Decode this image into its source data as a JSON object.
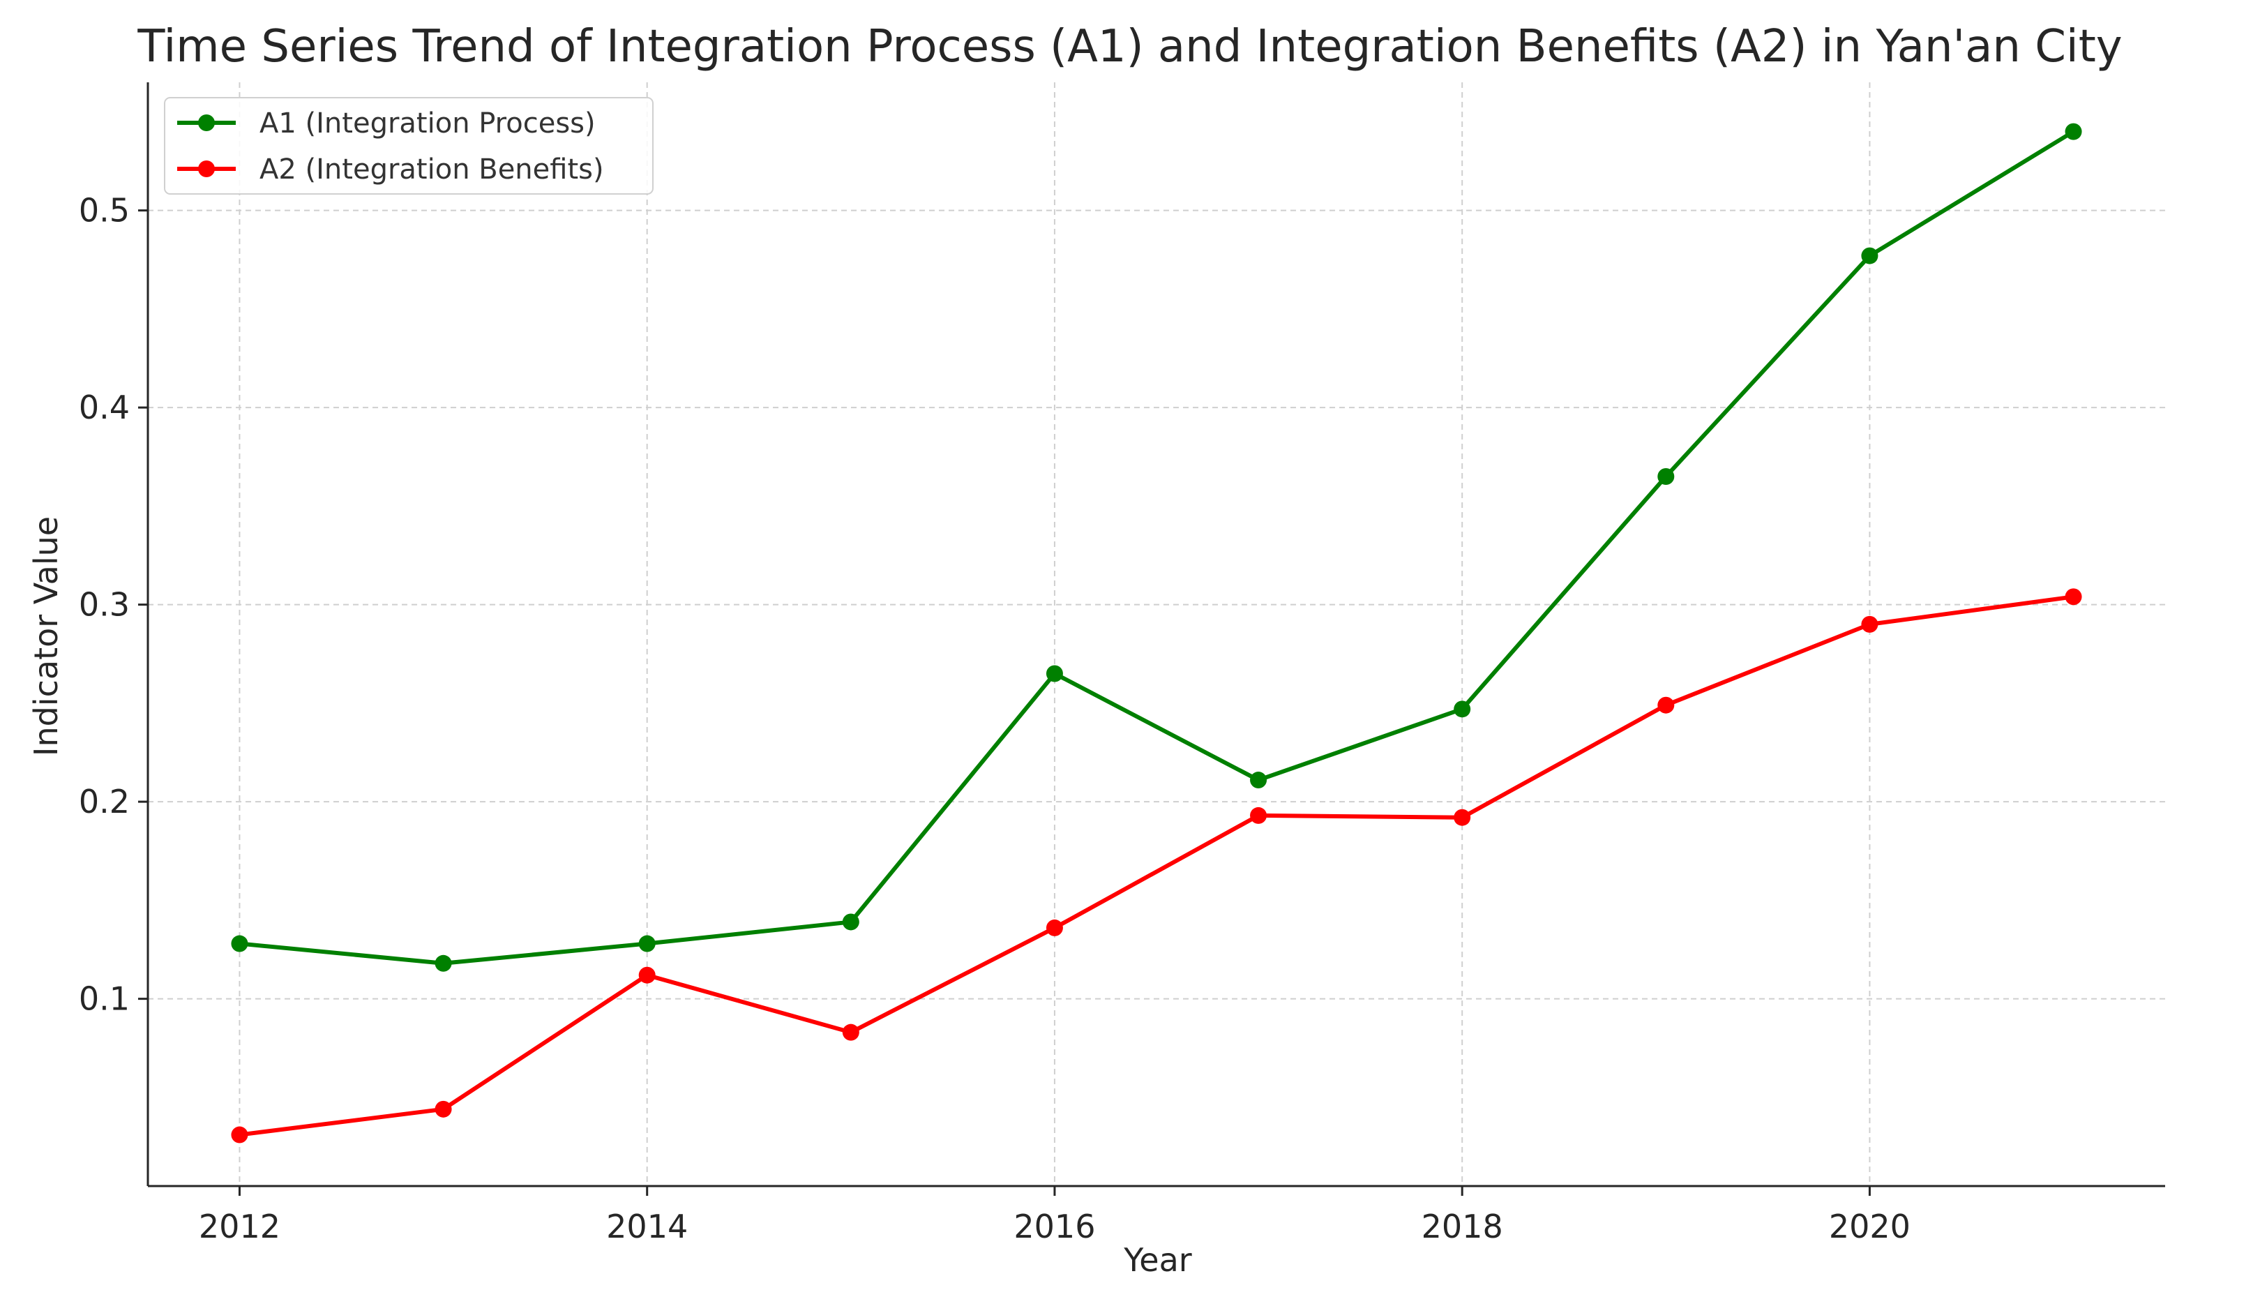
{
  "chart_data": {
    "type": "line",
    "title": "Time Series Trend of Integration Process (A1) and Integration Benefits (A2) in Yan'an City",
    "xlabel": "Year",
    "ylabel": "Indicator Value",
    "x": [
      2012,
      2013,
      2014,
      2015,
      2016,
      2017,
      2018,
      2019,
      2020,
      2021
    ],
    "xlim": [
      2011.55,
      2021.45
    ],
    "ylim": [
      0.005,
      0.565
    ],
    "xticks": [
      2012,
      2014,
      2016,
      2018,
      2020
    ],
    "xtick_labels": [
      "2012",
      "2014",
      "2016",
      "2018",
      "2020"
    ],
    "yticks": [
      0.1,
      0.2,
      0.3,
      0.4,
      0.5
    ],
    "ytick_labels": [
      "0.1",
      "0.2",
      "0.3",
      "0.4",
      "0.5"
    ],
    "grid": true,
    "legend_position": "top-left",
    "series": [
      {
        "name": "A1 (Integration Process)",
        "color": "#008000",
        "values": [
          0.128,
          0.118,
          0.128,
          0.139,
          0.265,
          0.211,
          0.247,
          0.365,
          0.477,
          0.54
        ]
      },
      {
        "name": "A2 (Integration Benefits)",
        "color": "#ff0000",
        "values": [
          0.031,
          0.044,
          0.112,
          0.083,
          0.136,
          0.193,
          0.192,
          0.249,
          0.29,
          0.304
        ]
      }
    ]
  }
}
